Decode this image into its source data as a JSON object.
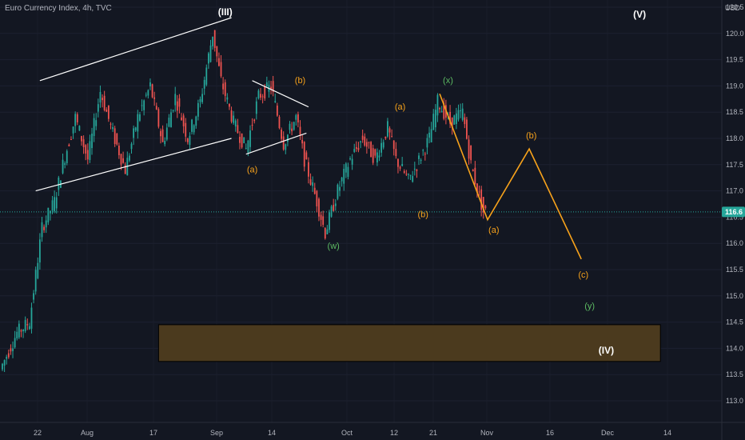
{
  "header": {
    "title": "Euro Currency Index, 4h, TVC",
    "currency": "USD"
  },
  "price_axis": {
    "ticks": [
      "120.5",
      "120.0",
      "119.5",
      "119.0",
      "118.5",
      "118.0",
      "117.5",
      "117.0",
      "116.5",
      "116.0",
      "115.5",
      "115.0",
      "114.5",
      "114.0",
      "113.5",
      "113.0"
    ],
    "last_price": "116.6"
  },
  "time_axis": {
    "ticks": [
      "22",
      "Aug",
      "17",
      "Sep",
      "14",
      "Oct",
      "12",
      "21",
      "Nov",
      "16",
      "Dec",
      "14"
    ]
  },
  "colors": {
    "background": "#131722",
    "up": "#26a69a",
    "down": "#ef5350",
    "orange": "#f7a21b",
    "green": "#5dbb63",
    "white": "#ffffff",
    "zone_fill": "#4b3a1e",
    "last_price_line": "#26a69a"
  },
  "chart_data": {
    "type": "candlestick",
    "title": "Euro Currency Index, 4h, TVC",
    "ylim": [
      112.8,
      120.8
    ],
    "x_ticks": [
      "22",
      "Aug",
      "17",
      "Sep",
      "14",
      "Oct",
      "12",
      "21",
      "Nov",
      "16",
      "Dec",
      "14"
    ],
    "candle_anchors": [
      {
        "bar": 0,
        "price": 113.6
      },
      {
        "bar": 8,
        "price": 114.3
      },
      {
        "bar": 14,
        "price": 114.5
      },
      {
        "bar": 20,
        "price": 116.3
      },
      {
        "bar": 26,
        "price": 116.8
      },
      {
        "bar": 30,
        "price": 117.5
      },
      {
        "bar": 36,
        "price": 118.4
      },
      {
        "bar": 42,
        "price": 117.6
      },
      {
        "bar": 48,
        "price": 118.9
      },
      {
        "bar": 54,
        "price": 118.1
      },
      {
        "bar": 60,
        "price": 117.4
      },
      {
        "bar": 66,
        "price": 118.4
      },
      {
        "bar": 72,
        "price": 119.0
      },
      {
        "bar": 78,
        "price": 117.9
      },
      {
        "bar": 84,
        "price": 118.8
      },
      {
        "bar": 90,
        "price": 118.0
      },
      {
        "bar": 96,
        "price": 118.7
      },
      {
        "bar": 102,
        "price": 120.0
      },
      {
        "bar": 106,
        "price": 119.1
      },
      {
        "bar": 112,
        "price": 118.3
      },
      {
        "bar": 118,
        "price": 117.8
      },
      {
        "bar": 124,
        "price": 118.8
      },
      {
        "bar": 130,
        "price": 119.0
      },
      {
        "bar": 136,
        "price": 117.9
      },
      {
        "bar": 142,
        "price": 118.4
      },
      {
        "bar": 146,
        "price": 117.6
      },
      {
        "bar": 152,
        "price": 116.8
      },
      {
        "bar": 156,
        "price": 116.2
      },
      {
        "bar": 162,
        "price": 117.0
      },
      {
        "bar": 168,
        "price": 117.6
      },
      {
        "bar": 174,
        "price": 118.0
      },
      {
        "bar": 180,
        "price": 117.6
      },
      {
        "bar": 186,
        "price": 118.2
      },
      {
        "bar": 190,
        "price": 117.6
      },
      {
        "bar": 196,
        "price": 117.2
      },
      {
        "bar": 200,
        "price": 117.5
      },
      {
        "bar": 206,
        "price": 118.0
      },
      {
        "bar": 210,
        "price": 118.7
      },
      {
        "bar": 216,
        "price": 118.3
      },
      {
        "bar": 222,
        "price": 118.5
      },
      {
        "bar": 226,
        "price": 117.5
      },
      {
        "bar": 230,
        "price": 116.9
      },
      {
        "bar": 232,
        "price": 116.6
      }
    ],
    "trendlines_white": [
      {
        "from": {
          "bar": 16,
          "price": 117.0
        },
        "to": {
          "bar": 110,
          "price": 118.0
        }
      },
      {
        "from": {
          "bar": 18,
          "price": 119.1
        },
        "to": {
          "bar": 110,
          "price": 120.3
        }
      },
      {
        "from": {
          "bar": 117,
          "price": 117.7
        },
        "to": {
          "bar": 146,
          "price": 118.1
        }
      },
      {
        "from": {
          "bar": 120,
          "price": 119.1
        },
        "to": {
          "bar": 147,
          "price": 118.6
        }
      }
    ],
    "projection": [
      {
        "bar": 210,
        "price": 118.85
      },
      {
        "bar": 233,
        "price": 116.45
      },
      {
        "bar": 253,
        "price": 117.8
      },
      {
        "bar": 278,
        "price": 115.7
      }
    ],
    "support_zone": {
      "from_bar": 75,
      "to_bar": 316,
      "price_low": 113.75,
      "price_high": 114.45
    },
    "wave_labels": [
      {
        "text": "(III)",
        "bar": 107,
        "price": 120.35,
        "color": "white",
        "style": "big"
      },
      {
        "text": "(b)",
        "bar": 143,
        "price": 119.05,
        "color": "orange",
        "style": "normal"
      },
      {
        "text": "(a)",
        "bar": 120,
        "price": 117.35,
        "color": "orange",
        "style": "normal"
      },
      {
        "text": "(w)",
        "bar": 159,
        "price": 115.9,
        "color": "green",
        "style": "normal"
      },
      {
        "text": "(a)",
        "bar": 191,
        "price": 118.55,
        "color": "orange",
        "style": "normal"
      },
      {
        "text": "(b)",
        "bar": 202,
        "price": 116.5,
        "color": "orange",
        "style": "normal"
      },
      {
        "text": "(x)",
        "bar": 214,
        "price": 119.05,
        "color": "green",
        "style": "normal"
      },
      {
        "text": "(a)",
        "bar": 236,
        "price": 116.2,
        "color": "orange",
        "style": "normal"
      },
      {
        "text": "(b)",
        "bar": 254,
        "price": 118.0,
        "color": "orange",
        "style": "normal"
      },
      {
        "text": "(c)",
        "bar": 279,
        "price": 115.35,
        "color": "orange",
        "style": "normal"
      },
      {
        "text": "(y)",
        "bar": 282,
        "price": 114.75,
        "color": "green",
        "style": "normal"
      },
      {
        "text": "(IV)",
        "bar": 290,
        "price": 113.9,
        "color": "white",
        "style": "big"
      },
      {
        "text": "(V)",
        "bar": 306,
        "price": 120.3,
        "color": "white",
        "style": "big"
      }
    ]
  }
}
